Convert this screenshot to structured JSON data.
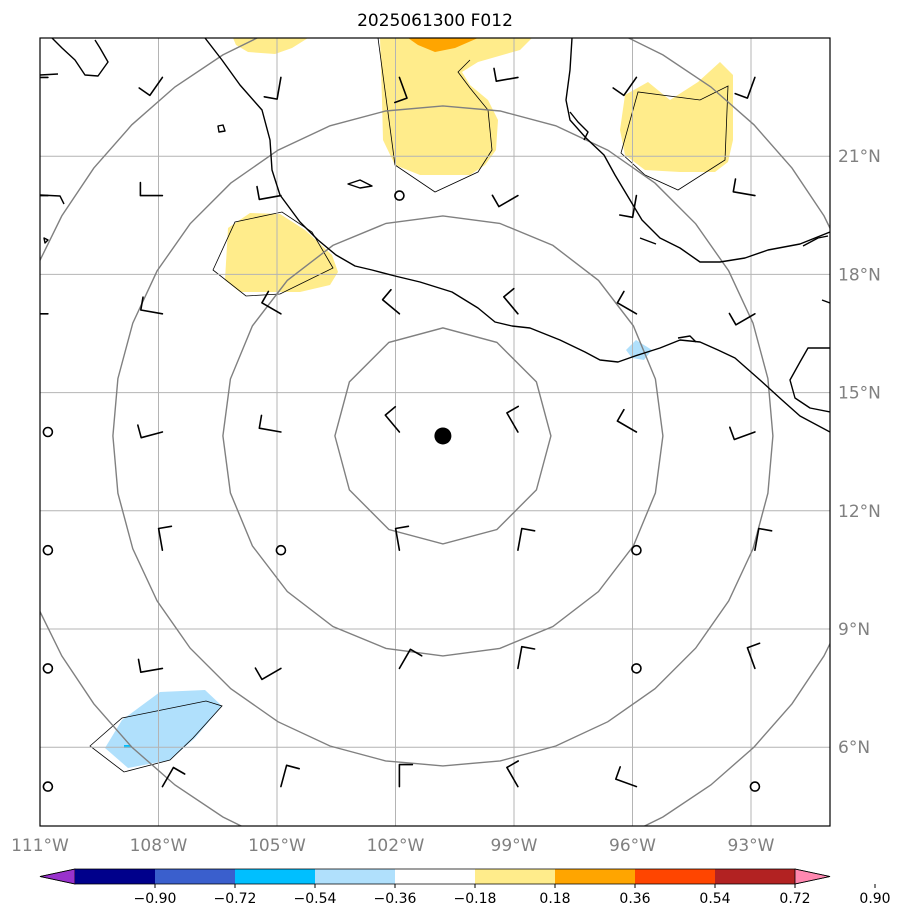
{
  "title": "2025061300 F012",
  "center": {
    "lon": -100.8,
    "lat": 13.9
  },
  "extent": {
    "lon": [
      -111.0,
      -91.0
    ],
    "lat": [
      4.0,
      24.0
    ]
  },
  "lon_ticks": [
    {
      "value": -111,
      "label": "111°W"
    },
    {
      "value": -108,
      "label": "108°W"
    },
    {
      "value": -105,
      "label": "105°W"
    },
    {
      "value": -102,
      "label": "102°W"
    },
    {
      "value": -99,
      "label": "99°W"
    },
    {
      "value": -96,
      "label": "96°W"
    },
    {
      "value": -93,
      "label": "93°W"
    }
  ],
  "lat_ticks": [
    {
      "value": 6,
      "label": "6°N"
    },
    {
      "value": 9,
      "label": "9°N"
    },
    {
      "value": 12,
      "label": "12°N"
    },
    {
      "value": 15,
      "label": "15°N"
    },
    {
      "value": 18,
      "label": "18°N"
    },
    {
      "value": 21,
      "label": "21°N"
    }
  ],
  "colorbar": {
    "labels": [
      "−0.90",
      "−0.72",
      "−0.54",
      "−0.36",
      "−0.18",
      "0.18",
      "0.36",
      "0.54",
      "0.72",
      "0.90"
    ],
    "colors": [
      "#9932cc",
      "#00008b",
      "#3a5fcd",
      "#00bfff",
      "#b0e0fc",
      "#ffffff",
      "#ffec8b",
      "#ffa500",
      "#ff4500",
      "#b22222",
      "#ff88b0"
    ]
  },
  "colors": {
    "grid": "#b4b4b4",
    "range_ring": "#808080",
    "coast": "#000000",
    "tick_label": "#808080",
    "positive_fill": "#ffec8b",
    "negative_fill": "#b0e0fc",
    "orange_fill": "#ffa500"
  },
  "range_rings": [
    "ring-1",
    "ring-2",
    "ring-3",
    "ring-4"
  ],
  "calm_stations": [
    [
      -101.9,
      20.0
    ],
    [
      -110.8,
      14.0
    ],
    [
      -110.8,
      11.0
    ],
    [
      -104.9,
      11.0
    ],
    [
      -95.9,
      11.0
    ],
    [
      -110.8,
      8.0
    ],
    [
      -95.9,
      8.0
    ],
    [
      -110.8,
      5.0
    ],
    [
      -92.9,
      5.0
    ]
  ],
  "wind_barbs": [
    {
      "lon": -110.8,
      "lat": 23.0,
      "dir_deg": 270,
      "barbs": 1
    },
    {
      "lon": -107.9,
      "lat": 23.0,
      "dir_deg": 215,
      "barbs": 1
    },
    {
      "lon": -104.9,
      "lat": 23.0,
      "dir_deg": 190,
      "barbs": 1
    },
    {
      "lon": -101.9,
      "lat": 23.0,
      "dir_deg": 160,
      "barbs": 1
    },
    {
      "lon": -98.9,
      "lat": 23.0,
      "dir_deg": 260,
      "barbs": 1
    },
    {
      "lon": -95.9,
      "lat": 23.0,
      "dir_deg": 215,
      "barbs": 1
    },
    {
      "lon": -92.9,
      "lat": 23.0,
      "dir_deg": 200,
      "barbs": 1
    },
    {
      "lon": -110.8,
      "lat": 20.0,
      "dir_deg": 270,
      "barbs": 1
    },
    {
      "lon": -107.9,
      "lat": 20.0,
      "dir_deg": 270,
      "barbs": 1
    },
    {
      "lon": -104.9,
      "lat": 20.0,
      "dir_deg": 260,
      "barbs": 1
    },
    {
      "lon": -98.9,
      "lat": 20.0,
      "dir_deg": 240,
      "barbs": 1
    },
    {
      "lon": -95.9,
      "lat": 20.0,
      "dir_deg": 190,
      "barbs": 1
    },
    {
      "lon": -92.9,
      "lat": 20.0,
      "dir_deg": 280,
      "barbs": 1
    },
    {
      "lon": -110.8,
      "lat": 17.0,
      "dir_deg": 270,
      "barbs": 1
    },
    {
      "lon": -107.9,
      "lat": 17.0,
      "dir_deg": 280,
      "barbs": 1
    },
    {
      "lon": -104.9,
      "lat": 17.0,
      "dir_deg": 300,
      "barbs": 1
    },
    {
      "lon": -101.9,
      "lat": 17.0,
      "dir_deg": 310,
      "barbs": 1
    },
    {
      "lon": -98.9,
      "lat": 17.0,
      "dir_deg": 320,
      "barbs": 1
    },
    {
      "lon": -95.9,
      "lat": 17.0,
      "dir_deg": 300,
      "barbs": 1
    },
    {
      "lon": -92.9,
      "lat": 17.0,
      "dir_deg": 240,
      "barbs": 1
    },
    {
      "lon": -107.9,
      "lat": 14.0,
      "dir_deg": 255,
      "barbs": 1
    },
    {
      "lon": -104.9,
      "lat": 14.0,
      "dir_deg": 280,
      "barbs": 1
    },
    {
      "lon": -101.9,
      "lat": 14.0,
      "dir_deg": 320,
      "barbs": 1
    },
    {
      "lon": -98.9,
      "lat": 14.0,
      "dir_deg": 330,
      "barbs": 1
    },
    {
      "lon": -95.9,
      "lat": 14.0,
      "dir_deg": 300,
      "barbs": 1
    },
    {
      "lon": -92.9,
      "lat": 14.0,
      "dir_deg": 250,
      "barbs": 1
    },
    {
      "lon": -107.9,
      "lat": 11.0,
      "dir_deg": 350,
      "barbs": 1
    },
    {
      "lon": -101.9,
      "lat": 11.0,
      "dir_deg": 350,
      "barbs": 1
    },
    {
      "lon": -98.9,
      "lat": 11.0,
      "dir_deg": 10,
      "barbs": 1
    },
    {
      "lon": -92.9,
      "lat": 11.0,
      "dir_deg": 10,
      "barbs": 1
    },
    {
      "lon": -107.9,
      "lat": 8.0,
      "dir_deg": 260,
      "barbs": 1
    },
    {
      "lon": -104.9,
      "lat": 8.0,
      "dir_deg": 240,
      "barbs": 1
    },
    {
      "lon": -101.9,
      "lat": 8.0,
      "dir_deg": 30,
      "barbs": 1
    },
    {
      "lon": -98.9,
      "lat": 8.0,
      "dir_deg": 10,
      "barbs": 1
    },
    {
      "lon": -92.9,
      "lat": 8.0,
      "dir_deg": 340,
      "barbs": 1
    },
    {
      "lon": -107.9,
      "lat": 5.0,
      "dir_deg": 30,
      "barbs": 1
    },
    {
      "lon": -104.9,
      "lat": 5.0,
      "dir_deg": 15,
      "barbs": 1
    },
    {
      "lon": -101.9,
      "lat": 5.0,
      "dir_deg": 0,
      "barbs": 1
    },
    {
      "lon": -98.9,
      "lat": 5.0,
      "dir_deg": 330,
      "barbs": 1
    },
    {
      "lon": -95.9,
      "lat": 5.0,
      "dir_deg": 290,
      "barbs": 1
    }
  ]
}
